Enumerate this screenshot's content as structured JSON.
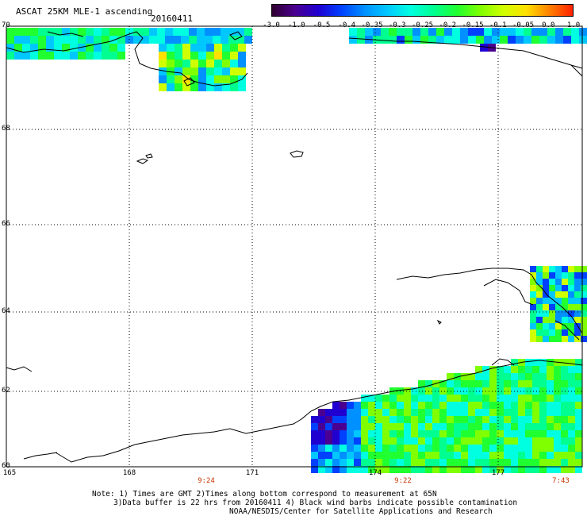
{
  "header": {
    "title": "ASCAT 25KM MLE-1 ascending",
    "date": "20160411"
  },
  "colorbar": {
    "ticks": [
      "-3.0",
      "-1.0",
      "-0.5",
      "-0.4",
      "-0.35",
      "-0.3",
      "-0.25",
      "-0.2",
      "-0.15",
      "-0.1",
      "-0.05",
      "0.0",
      "1.0"
    ],
    "colors": [
      "#300030",
      "#4a0090",
      "#2000d0",
      "#0040ff",
      "#0090ff",
      "#00c8ff",
      "#00ffe0",
      "#00ff90",
      "#20ff30",
      "#80ff00",
      "#d0ff00",
      "#ffe000",
      "#ff8000",
      "#ff2000"
    ]
  },
  "map": {
    "lat_labels": [
      "70",
      "68",
      "66",
      "64",
      "62",
      "60"
    ],
    "lon_labels": [
      "165",
      "168",
      "171",
      "174",
      "177"
    ],
    "pass_times": [
      "9:24",
      "9:22",
      "7:43"
    ]
  },
  "footer": {
    "line1": "Note: 1) Times are GMT 2)Times along bottom correspond to measurement at 65N",
    "line2": "3)Data buffer is 22 hrs from 20160411 4) Black wind barbs indicate possible contamination",
    "line3": "NOAA/NESDIS/Center for Satellite Applications and Research"
  }
}
